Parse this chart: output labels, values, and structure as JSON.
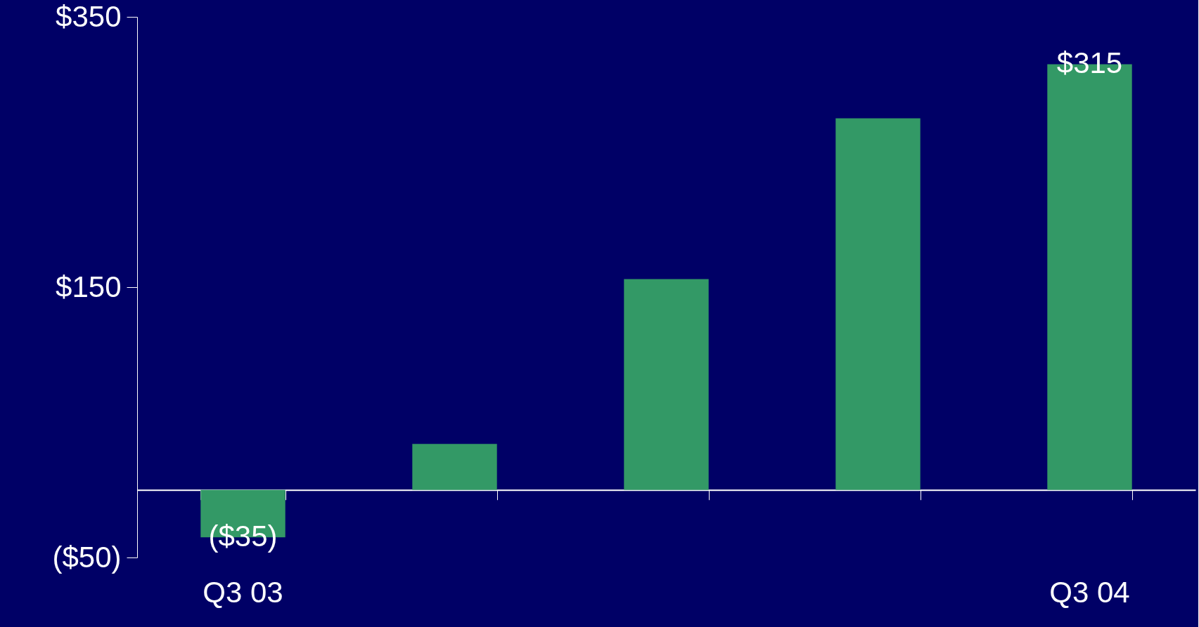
{
  "chart_data": {
    "type": "bar",
    "categories": [
      "Q3 03",
      null,
      null,
      null,
      "Q3 04"
    ],
    "values": [
      -35,
      34,
      156,
      275,
      315
    ],
    "value_labels": [
      "($35)",
      null,
      null,
      null,
      "$315"
    ],
    "color": "#339966",
    "ylim": [
      -50,
      350
    ],
    "yticks": [
      {
        "value": -50,
        "label": "($50)"
      },
      {
        "value": 150,
        "label": "$150"
      },
      {
        "value": 350,
        "label": "$350"
      }
    ],
    "grid": false
  }
}
